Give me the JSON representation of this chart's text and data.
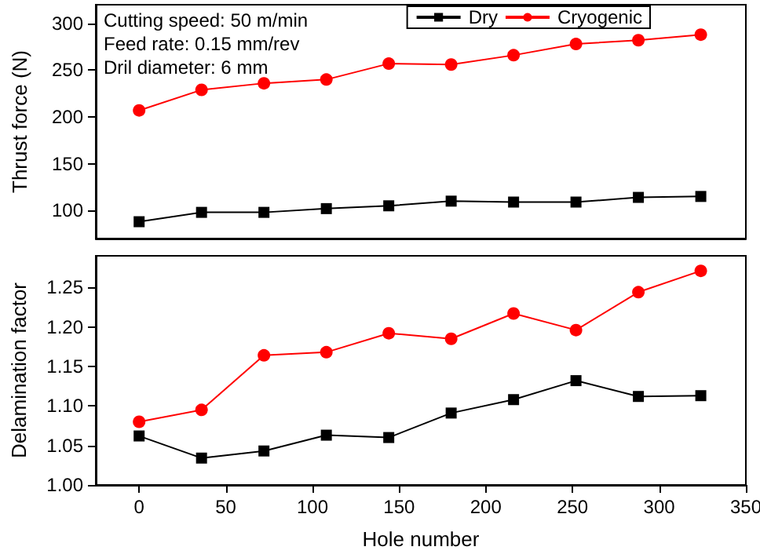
{
  "chart_data": [
    {
      "type": "line",
      "ylabel": "Thrust force (N)",
      "x": [
        0,
        36,
        72,
        108,
        144,
        180,
        216,
        252,
        288,
        324
      ],
      "series": [
        {
          "name": "Dry",
          "color": "#000000",
          "marker": "square",
          "values": [
            88,
            98,
            98,
            102,
            105,
            110,
            109,
            109,
            114,
            115
          ]
        },
        {
          "name": "Cryogenic",
          "color": "#ff0000",
          "marker": "circle",
          "values": [
            207,
            229,
            236,
            240,
            257,
            256,
            266,
            278,
            282,
            288
          ]
        }
      ],
      "xlim": [
        -25,
        350
      ],
      "ylim": [
        70,
        320
      ],
      "yticks": [
        100,
        150,
        200,
        250,
        300
      ],
      "tick_labels": "y",
      "legend": "top",
      "grid": false,
      "annotations": [
        "Cutting speed: 50 m/min",
        "Feed rate: 0.15 mm/rev",
        "Dril diameter: 6 mm"
      ]
    },
    {
      "type": "line",
      "xlabel": "Hole number",
      "ylabel": "Delamination factor",
      "x": [
        0,
        36,
        72,
        108,
        144,
        180,
        216,
        252,
        288,
        324
      ],
      "series": [
        {
          "color": "#000000",
          "marker": "square",
          "values": [
            1.062,
            1.034,
            1.043,
            1.063,
            1.06,
            1.091,
            1.108,
            1.132,
            1.112,
            1.113
          ]
        },
        {
          "color": "#ff0000",
          "marker": "circle",
          "values": [
            1.08,
            1.095,
            1.164,
            1.168,
            1.192,
            1.185,
            1.217,
            1.196,
            1.244,
            1.271
          ]
        }
      ],
      "xlim": [
        -25,
        350
      ],
      "xticks": [
        0,
        50,
        100,
        150,
        200,
        250,
        300,
        350
      ],
      "ylim": [
        1.0,
        1.29
      ],
      "yticks": [
        {
          "value": 1.0,
          "label": "1.00"
        },
        1.05,
        {
          "value": 1.1,
          "label": "1.10"
        },
        1.15,
        {
          "value": 1.2,
          "label": "1.20"
        },
        1.25
      ],
      "grid": false
    }
  ]
}
